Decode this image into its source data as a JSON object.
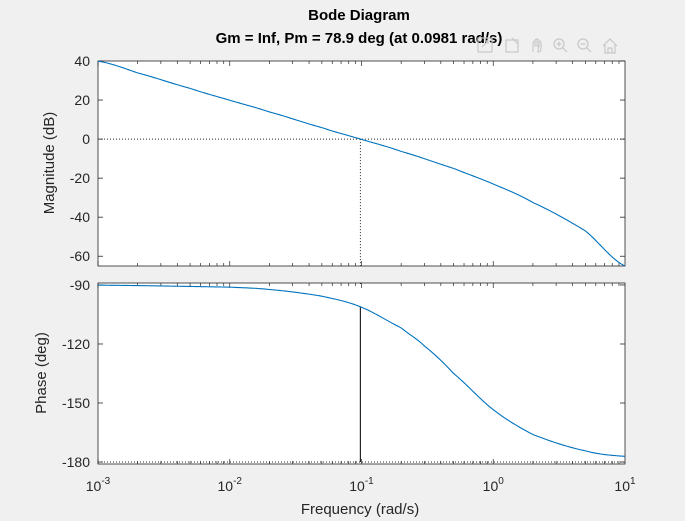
{
  "chart_data": {
    "type": "line",
    "title": "Bode Diagram",
    "subtitle": "Gm = Inf,  Pm = 78.9 deg (at 0.0981 rad/s)",
    "xlabel": "Frequency  (rad/s)",
    "xscale": "log",
    "xlim": [
      0.001,
      10
    ],
    "x_ticks": [
      {
        "base": "10",
        "exp": "-3",
        "value": 0.001
      },
      {
        "base": "10",
        "exp": "-2",
        "value": 0.01
      },
      {
        "base": "10",
        "exp": "-1",
        "value": 0.1
      },
      {
        "base": "10",
        "exp": "0",
        "value": 1
      },
      {
        "base": "10",
        "exp": "1",
        "value": 10
      }
    ],
    "crossover_frequency": 0.0981,
    "phase_margin_deg": 78.9,
    "line_color": "#0072bd",
    "panels": [
      {
        "name": "magnitude",
        "ylabel": "Magnitude (dB)",
        "ylim": [
          -65,
          40
        ],
        "y_ticks": [
          {
            "label": "40",
            "value": 40
          },
          {
            "label": "20",
            "value": 20
          },
          {
            "label": "0",
            "value": 0
          },
          {
            "label": "-20",
            "value": -20
          },
          {
            "label": "-40",
            "value": -40
          },
          {
            "label": "-60",
            "value": -60
          }
        ],
        "x": [
          0.001,
          0.002,
          0.005,
          0.01,
          0.02,
          0.05,
          0.0981,
          0.2,
          0.5,
          1,
          2,
          5,
          10
        ],
        "y": [
          39.9,
          33.9,
          26.0,
          19.9,
          13.9,
          5.9,
          0.0,
          -6.3,
          -15.0,
          -23.0,
          -32.5,
          -47.0,
          -65.0
        ]
      },
      {
        "name": "phase",
        "ylabel": "Phase (deg)",
        "ylim": [
          -181,
          -89
        ],
        "y_ticks": [
          {
            "label": "-90",
            "value": -90
          },
          {
            "label": "-120",
            "value": -120
          },
          {
            "label": "-150",
            "value": -150
          },
          {
            "label": "-180",
            "value": -180
          }
        ],
        "x": [
          0.001,
          0.01,
          0.02,
          0.05,
          0.0981,
          0.2,
          0.3,
          0.5,
          1,
          2,
          5,
          10
        ],
        "y": [
          -90.1,
          -91.1,
          -92.3,
          -95.7,
          -101.1,
          -111.8,
          -121.0,
          -135.0,
          -153.4,
          -166.0,
          -174.3,
          -177.1
        ]
      }
    ]
  },
  "toolbar": {
    "icons": [
      "export-icon",
      "brush-icon",
      "pan-icon",
      "zoom-in-icon",
      "zoom-out-icon",
      "home-icon"
    ]
  }
}
